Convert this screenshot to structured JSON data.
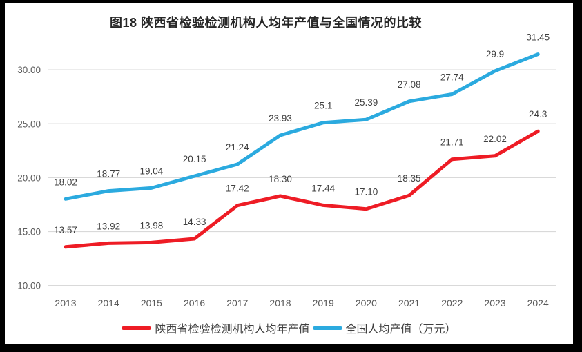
{
  "chart_data": {
    "type": "line",
    "title": "图18 陕西省检验检测机构人均年产值与全国情况的比较",
    "categories": [
      "2013",
      "2014",
      "2015",
      "2016",
      "2017",
      "2018",
      "2019",
      "2020",
      "2021",
      "2022",
      "2023",
      "2024"
    ],
    "series": [
      {
        "name": "陕西省检验检测机构人均年产值",
        "color": "#EE1C25",
        "values": [
          13.57,
          13.92,
          13.98,
          14.33,
          17.42,
          18.3,
          17.44,
          17.1,
          18.35,
          21.71,
          22.02,
          24.3
        ],
        "labels": [
          "13.57",
          "13.92",
          "13.98",
          "14.33",
          "17.42",
          "18.30",
          "17.44",
          "17.10",
          "18.35",
          "21.71",
          "22.02",
          "24.3"
        ]
      },
      {
        "name": "全国人均产值（万元）",
        "color": "#2BAADF",
        "values": [
          18.02,
          18.77,
          19.04,
          20.15,
          21.24,
          23.93,
          25.1,
          25.39,
          27.08,
          27.74,
          29.9,
          31.45
        ],
        "labels": [
          "18.02",
          "18.77",
          "19.04",
          "20.15",
          "21.24",
          "23.93",
          "25.1",
          "25.39",
          "27.08",
          "27.74",
          "29.9",
          "31.45"
        ]
      }
    ],
    "y_axis": {
      "ticks": [
        {
          "value": 30,
          "label": "30.00"
        },
        {
          "value": 25,
          "label": "25.00"
        },
        {
          "value": 20,
          "label": "20.00"
        },
        {
          "value": 15,
          "label": "15.00"
        },
        {
          "value": 10,
          "label": "10.00"
        }
      ],
      "range": [
        10,
        32.5
      ]
    },
    "xlabel": "",
    "ylabel": "",
    "grid": true,
    "legend_position": "bottom",
    "colors": {
      "grid": "#D9D9D9",
      "axis_text": "#595959",
      "label_text": "#404040",
      "title_text": "#262626",
      "frame_border": "#000000",
      "background": "#FFFFFF"
    }
  }
}
